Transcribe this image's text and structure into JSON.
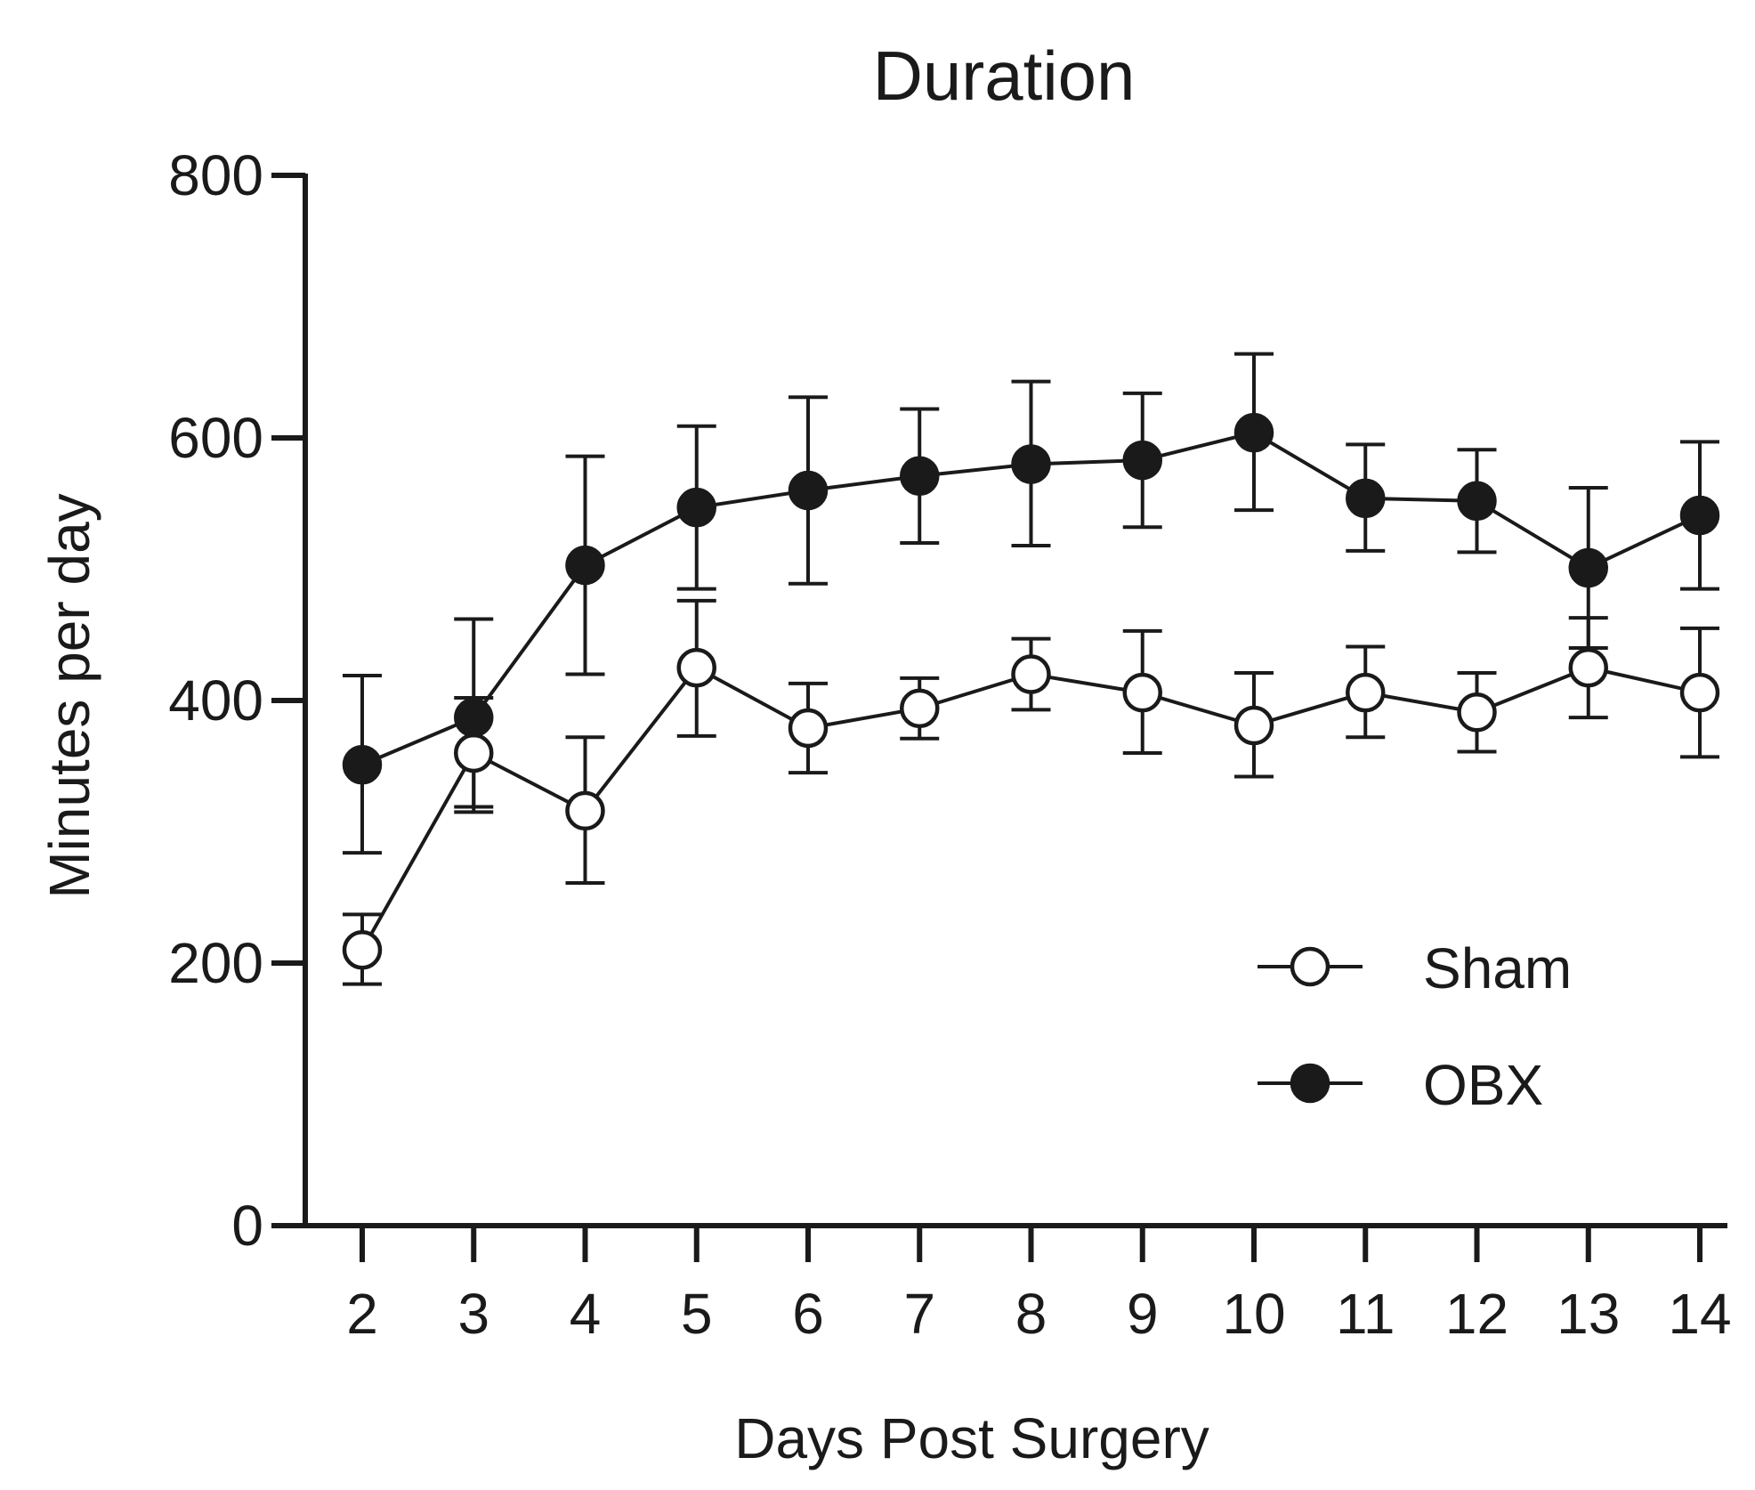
{
  "chart_data": {
    "type": "line",
    "title": "Duration",
    "xlabel": "Days Post Surgery",
    "ylabel": "Minutes per day",
    "x": [
      2,
      3,
      4,
      5,
      6,
      7,
      8,
      9,
      10,
      11,
      12,
      13,
      14
    ],
    "xticks": [
      "2",
      "3",
      "4",
      "5",
      "6",
      "7",
      "8",
      "9",
      "10",
      "11",
      "12",
      "13",
      "14"
    ],
    "ylim": [
      0,
      800
    ],
    "yticks": [
      "0",
      "200",
      "400",
      "600",
      "800"
    ],
    "grid": false,
    "legend_position": "bottom-right",
    "series": [
      {
        "name": "Sham",
        "marker": "open-circle",
        "color": "#1a1a1a",
        "fill": "#ffffff",
        "values": [
          210,
          360,
          316,
          425,
          379,
          394,
          420,
          406,
          381,
          406,
          391,
          425,
          406
        ],
        "err_upper": [
          237,
          402,
          372,
          476,
          413,
          417,
          447,
          453,
          421,
          441,
          421,
          463,
          455
        ],
        "err_lower": [
          184,
          315,
          261,
          373,
          345,
          371,
          393,
          360,
          342,
          372,
          361,
          387,
          357
        ]
      },
      {
        "name": "OBX",
        "marker": "filled-circle",
        "color": "#1a1a1a",
        "fill": "#1a1a1a",
        "values": [
          351,
          387,
          503,
          547,
          560,
          571,
          580,
          583,
          604,
          554,
          552,
          501,
          541
        ],
        "err_upper": [
          419,
          462,
          586,
          609,
          631,
          622,
          643,
          634,
          664,
          595,
          591,
          562,
          597
        ],
        "err_lower": [
          284,
          319,
          420,
          485,
          489,
          520,
          518,
          532,
          545,
          514,
          513,
          440,
          485
        ]
      }
    ]
  }
}
